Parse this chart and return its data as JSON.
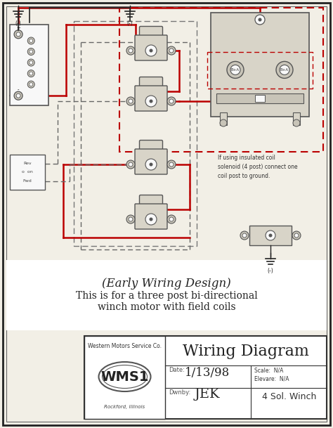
{
  "bg_color": "#f2efe6",
  "border_color": "#333333",
  "red_wire": "#bb0000",
  "black_wire": "#222222",
  "gray_wire": "#666666",
  "component_fill": "#d8d4c8",
  "component_fill2": "#c8c4b8",
  "component_edge": "#555555",
  "white_fill": "#f8f8f8",
  "title_italic": "(Early Wiring Design)",
  "title_line2": "This is for a three post bi-directional",
  "title_line3": "winch motor with field coils",
  "footer_company": "Western Motors Service Co.",
  "footer_logo": "WMS1",
  "footer_city": "Rockford, Illinois",
  "footer_title": "Wiring Diagram",
  "footer_date_label": "Date:",
  "footer_date": "1/13/98",
  "footer_scale_label": "Scale:  N/A",
  "footer_elev_label": "Elevare:  N/A",
  "footer_drawnby_label": "Dwnby:",
  "footer_drawnby": "JEK",
  "footer_drawing": "4 Sol. Winch",
  "note_text": "If using insulated coil\nsolenoid (4 post) connect one\ncoil post to ground."
}
